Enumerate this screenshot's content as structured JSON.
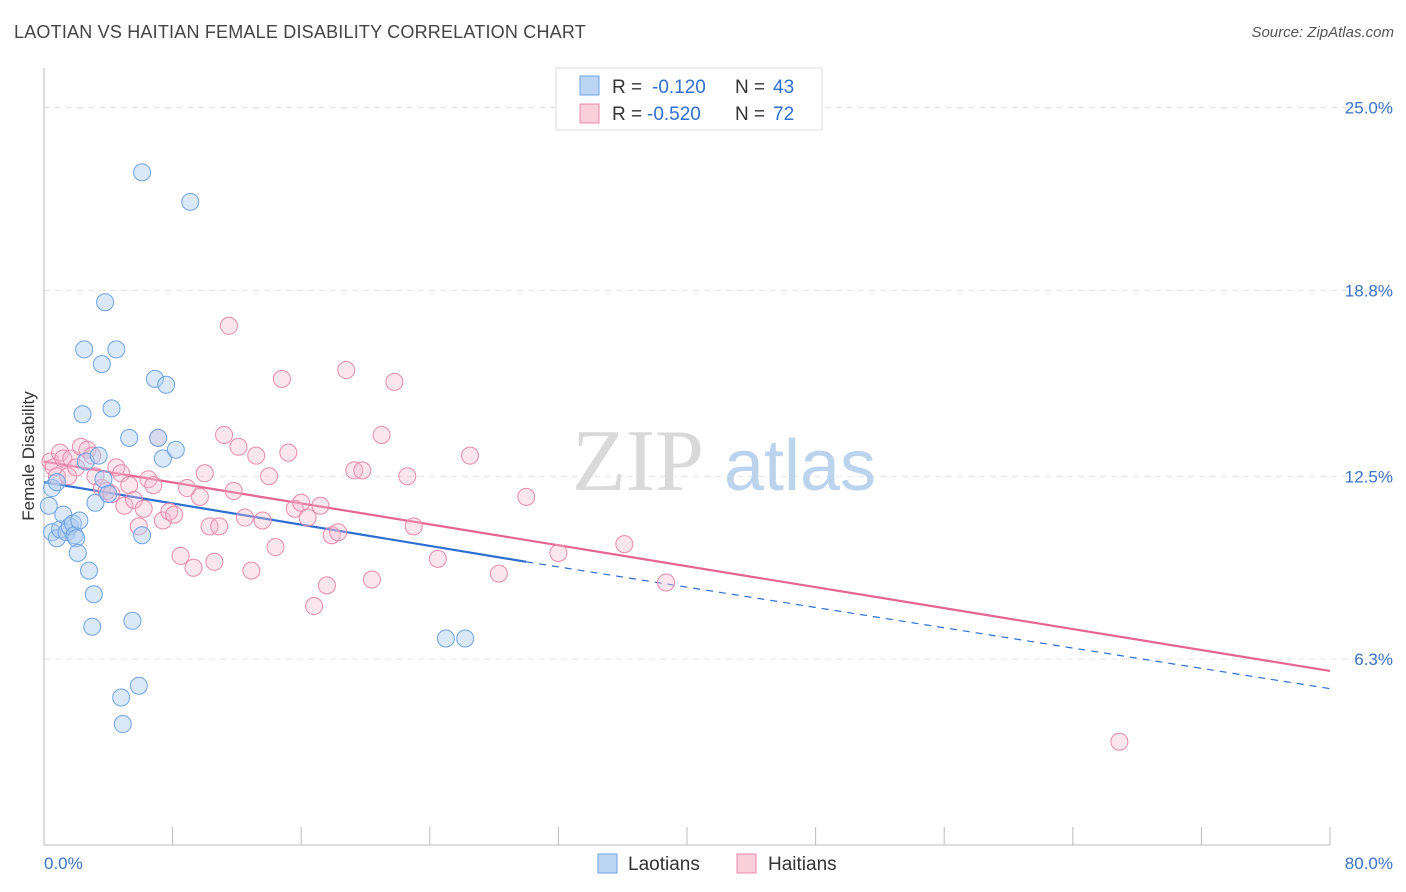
{
  "title": "LAOTIAN VS HAITIAN FEMALE DISABILITY CORRELATION CHART",
  "source": "Source: ZipAtlas.com",
  "watermark": {
    "zip": "ZIP",
    "atlas": "atlas"
  },
  "colors": {
    "laotian": "#6fa3e6",
    "laotian_fill": "rgba(173,203,240,0.45)",
    "laotian_line": "#2d6fd1",
    "haitian": "#e88aab",
    "haitian_fill": "rgba(244,184,205,0.35)",
    "haitian_line": "#e5658f",
    "axis_text": "#3a73c8"
  },
  "legend": {
    "rows": [
      {
        "r_label": "R =",
        "r_value": "-0.120",
        "n_label": "N =",
        "n_value": "43"
      },
      {
        "r_label": "R =",
        "r_value": "-0.520",
        "n_label": "N =",
        "n_value": "72"
      }
    ]
  },
  "chart_data": {
    "type": "scatter",
    "title": "LAOTIAN VS HAITIAN FEMALE DISABILITY CORRELATION CHART",
    "xlabel": "",
    "ylabel": "Female Disability",
    "xlim": [
      0,
      80
    ],
    "ylim": [
      0,
      26
    ],
    "x_tick_labels": [
      "0.0%",
      "80.0%"
    ],
    "y_ticks": [
      6.3,
      12.5,
      18.8,
      25.0
    ],
    "y_tick_labels": [
      "6.3%",
      "12.5%",
      "18.8%",
      "25.0%"
    ],
    "grid": true,
    "legend_position": "top-center",
    "series": [
      {
        "name": "Laotians",
        "r": -0.12,
        "n": 43,
        "trend": {
          "x0": 0,
          "y0": 12.3,
          "x1": 30,
          "y1": 9.6,
          "dashed_to_x": 80,
          "dashed_to_y": 5.3
        },
        "points": [
          [
            0.3,
            11.5
          ],
          [
            0.5,
            10.6
          ],
          [
            0.5,
            12.1
          ],
          [
            0.8,
            10.4
          ],
          [
            1.0,
            10.7
          ],
          [
            1.2,
            11.2
          ],
          [
            1.4,
            10.6
          ],
          [
            1.6,
            10.8
          ],
          [
            1.8,
            10.9
          ],
          [
            1.9,
            10.5
          ],
          [
            2.0,
            10.4
          ],
          [
            2.1,
            9.9
          ],
          [
            2.2,
            11.0
          ],
          [
            2.4,
            14.6
          ],
          [
            2.5,
            16.8
          ],
          [
            2.6,
            13.0
          ],
          [
            2.8,
            9.3
          ],
          [
            3.0,
            7.4
          ],
          [
            3.1,
            8.5
          ],
          [
            3.2,
            11.6
          ],
          [
            3.4,
            13.2
          ],
          [
            3.6,
            16.3
          ],
          [
            3.7,
            12.4
          ],
          [
            3.8,
            18.4
          ],
          [
            4.0,
            11.9
          ],
          [
            4.2,
            14.8
          ],
          [
            4.5,
            16.8
          ],
          [
            4.8,
            5.0
          ],
          [
            4.9,
            4.1
          ],
          [
            5.3,
            13.8
          ],
          [
            5.5,
            7.6
          ],
          [
            5.9,
            5.4
          ],
          [
            6.1,
            10.5
          ],
          [
            6.1,
            22.8
          ],
          [
            6.9,
            15.8
          ],
          [
            7.1,
            13.8
          ],
          [
            7.4,
            13.1
          ],
          [
            7.6,
            15.6
          ],
          [
            8.2,
            13.4
          ],
          [
            9.1,
            21.8
          ],
          [
            25.0,
            7.0
          ],
          [
            26.2,
            7.0
          ],
          [
            0.8,
            12.3
          ]
        ]
      },
      {
        "name": "Haitians",
        "r": -0.52,
        "n": 72,
        "trend": {
          "x0": 0,
          "y0": 13.0,
          "x1": 80,
          "y1": 5.9
        },
        "points": [
          [
            0.4,
            13.0
          ],
          [
            0.6,
            12.8
          ],
          [
            0.8,
            12.5
          ],
          [
            1.0,
            13.3
          ],
          [
            1.2,
            13.1
          ],
          [
            1.5,
            12.5
          ],
          [
            1.7,
            13.1
          ],
          [
            2.0,
            12.8
          ],
          [
            2.3,
            13.5
          ],
          [
            2.7,
            13.4
          ],
          [
            3.0,
            13.2
          ],
          [
            3.2,
            12.5
          ],
          [
            3.6,
            12.1
          ],
          [
            3.9,
            12.0
          ],
          [
            4.2,
            11.9
          ],
          [
            4.5,
            12.8
          ],
          [
            4.8,
            12.6
          ],
          [
            5.0,
            11.5
          ],
          [
            5.3,
            12.2
          ],
          [
            5.6,
            11.7
          ],
          [
            5.9,
            10.8
          ],
          [
            6.2,
            11.4
          ],
          [
            6.5,
            12.4
          ],
          [
            6.8,
            12.2
          ],
          [
            7.1,
            13.8
          ],
          [
            7.4,
            11.0
          ],
          [
            7.8,
            11.3
          ],
          [
            8.1,
            11.2
          ],
          [
            8.5,
            9.8
          ],
          [
            8.9,
            12.1
          ],
          [
            9.3,
            9.4
          ],
          [
            9.7,
            11.8
          ],
          [
            10.0,
            12.6
          ],
          [
            10.3,
            10.8
          ],
          [
            10.6,
            9.6
          ],
          [
            10.9,
            10.8
          ],
          [
            11.2,
            13.9
          ],
          [
            11.5,
            17.6
          ],
          [
            11.8,
            12.0
          ],
          [
            12.1,
            13.5
          ],
          [
            12.5,
            11.1
          ],
          [
            12.9,
            9.3
          ],
          [
            13.2,
            13.2
          ],
          [
            13.6,
            11.0
          ],
          [
            14.0,
            12.5
          ],
          [
            14.4,
            10.1
          ],
          [
            14.8,
            15.8
          ],
          [
            15.2,
            13.3
          ],
          [
            15.6,
            11.4
          ],
          [
            16.0,
            11.6
          ],
          [
            16.4,
            11.1
          ],
          [
            16.8,
            8.1
          ],
          [
            17.2,
            11.5
          ],
          [
            17.6,
            8.8
          ],
          [
            17.9,
            10.5
          ],
          [
            18.3,
            10.6
          ],
          [
            18.8,
            16.1
          ],
          [
            19.3,
            12.7
          ],
          [
            19.8,
            12.7
          ],
          [
            20.4,
            9.0
          ],
          [
            21.0,
            13.9
          ],
          [
            21.8,
            15.7
          ],
          [
            22.6,
            12.5
          ],
          [
            23.0,
            10.8
          ],
          [
            24.5,
            9.7
          ],
          [
            26.5,
            13.2
          ],
          [
            28.3,
            9.2
          ],
          [
            30.0,
            11.8
          ],
          [
            32.0,
            9.9
          ],
          [
            36.1,
            10.2
          ],
          [
            66.9,
            3.5
          ],
          [
            38.7,
            8.9
          ]
        ]
      }
    ]
  },
  "bottom_legend": {
    "items": [
      "Laotians",
      "Haitians"
    ]
  }
}
